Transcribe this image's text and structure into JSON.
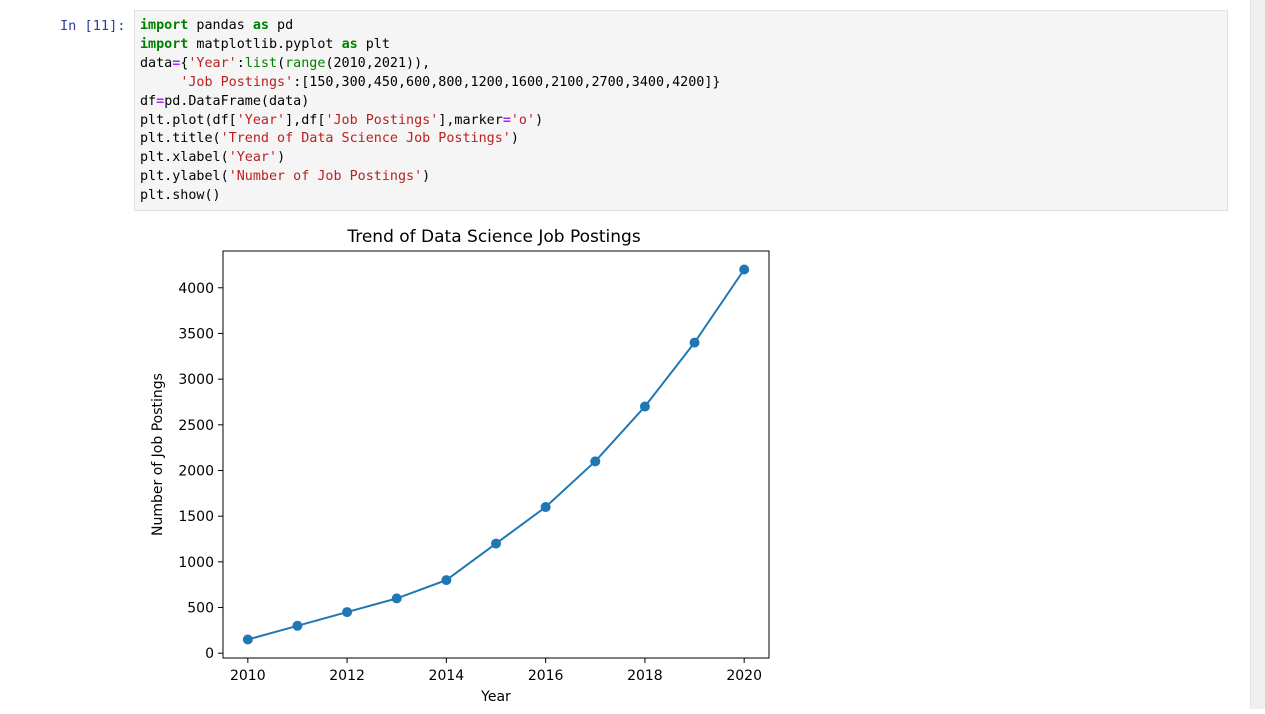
{
  "cell": {
    "prompt": "In [11]:",
    "code": [
      [
        [
          "kw",
          "import"
        ],
        [
          "t",
          " pandas "
        ],
        [
          "kw",
          "as"
        ],
        [
          "t",
          " pd"
        ]
      ],
      [
        [
          "kw",
          "import"
        ],
        [
          "t",
          " matplotlib.pyplot "
        ],
        [
          "kw",
          "as"
        ],
        [
          "t",
          " plt"
        ]
      ],
      [
        [
          "t",
          "data"
        ],
        [
          "op",
          "="
        ],
        [
          "t",
          "{"
        ],
        [
          "st",
          "'Year'"
        ],
        [
          "t",
          ":"
        ],
        [
          "nb",
          "list"
        ],
        [
          "t",
          "("
        ],
        [
          "nb",
          "range"
        ],
        [
          "t",
          "(2010,2021)),"
        ]
      ],
      [
        [
          "t",
          "     "
        ],
        [
          "st",
          "'Job Postings'"
        ],
        [
          "t",
          ":[150,300,450,600,800,1200,1600,2100,2700,3400,4200]}"
        ]
      ],
      [
        [
          "t",
          "df"
        ],
        [
          "op",
          "="
        ],
        [
          "t",
          "pd.DataFrame(data)"
        ]
      ],
      [
        [
          "t",
          "plt.plot(df["
        ],
        [
          "st",
          "'Year'"
        ],
        [
          "t",
          "],df["
        ],
        [
          "st",
          "'Job Postings'"
        ],
        [
          "t",
          "],marker"
        ],
        [
          "op",
          "="
        ],
        [
          "st",
          "'o'"
        ],
        [
          "t",
          ")"
        ]
      ],
      [
        [
          "t",
          "plt.title("
        ],
        [
          "st",
          "'Trend of Data Science Job Postings'"
        ],
        [
          "t",
          ")"
        ]
      ],
      [
        [
          "t",
          "plt.xlabel("
        ],
        [
          "st",
          "'Year'"
        ],
        [
          "t",
          ")"
        ]
      ],
      [
        [
          "t",
          "plt.ylabel("
        ],
        [
          "st",
          "'Number of Job Postings'"
        ],
        [
          "t",
          ")"
        ]
      ],
      [
        [
          "t",
          "plt.show()"
        ]
      ]
    ]
  },
  "colors": {
    "keyword": "#008000",
    "operator": "#aa22ff",
    "string": "#ba2121",
    "line": "#1f77b4"
  },
  "chart_data": {
    "type": "line",
    "title": "Trend of Data Science Job Postings",
    "xlabel": "Year",
    "ylabel": "Number of Job Postings",
    "x": [
      2010,
      2011,
      2012,
      2013,
      2014,
      2015,
      2016,
      2017,
      2018,
      2019,
      2020
    ],
    "series": [
      {
        "values": [
          150,
          300,
          450,
          600,
          800,
          1200,
          1600,
          2100,
          2700,
          3400,
          4200
        ],
        "marker": "o",
        "color": "#1f77b4"
      }
    ],
    "xticks": [
      2010,
      2012,
      2014,
      2016,
      2018,
      2020
    ],
    "yticks": [
      0,
      500,
      1000,
      1500,
      2000,
      2500,
      3000,
      3500,
      4000
    ],
    "xlim": [
      2009.5,
      2020.5
    ],
    "ylim": [
      -52.5,
      4402.5
    ],
    "grid": false
  }
}
